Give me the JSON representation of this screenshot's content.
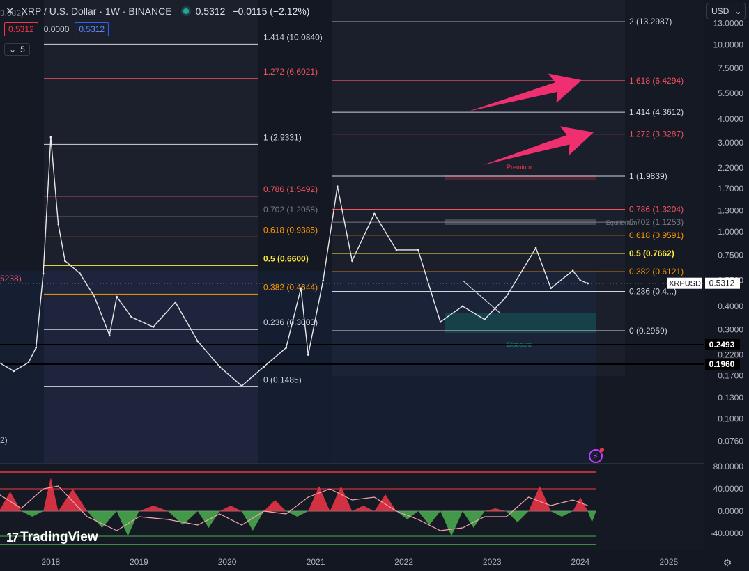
{
  "header": {
    "close_icon": "close-icon",
    "title": "XRP / U.S. Dollar · 1W · BINANCE",
    "status_color": "#26a69a",
    "price": "0.5312",
    "change": "−0.0115 (−2.12%)"
  },
  "ohlc": {
    "bid": "0.5312",
    "spread": "0.0000",
    "ask": "0.5312"
  },
  "indicators_toggle": {
    "icon": "chevron-down-icon",
    "count": "5"
  },
  "currency_button": {
    "label": "USD",
    "icon": "chevron-down-icon"
  },
  "logo": {
    "mark": "17",
    "text": "TradingView"
  },
  "partial_labels": {
    "top": "3.582)",
    "left_mid": "5238)",
    "left_low": "2)"
  },
  "chart_data": [
    {
      "type": "line",
      "series": [
        {
          "name": "XRPUSD",
          "x": [
            "2017-06",
            "2017-08",
            "2017-10",
            "2017-11",
            "2017-12",
            "2018-01",
            "2018-02",
            "2018-03",
            "2018-05",
            "2018-07",
            "2018-09",
            "2018-10",
            "2018-12",
            "2019-03",
            "2019-06",
            "2019-09",
            "2019-12",
            "2020-03",
            "2020-06",
            "2020-09",
            "2020-11",
            "2020-12",
            "2021-02",
            "2021-04",
            "2021-06",
            "2021-09",
            "2021-12",
            "2022-03",
            "2022-06",
            "2022-09",
            "2022-12",
            "2023-03",
            "2023-07",
            "2023-09",
            "2023-12",
            "2024-01",
            "2024-02"
          ],
          "values": [
            0.2,
            0.18,
            0.2,
            0.24,
            0.6,
            3.2,
            1.1,
            0.7,
            0.6,
            0.45,
            0.28,
            0.45,
            0.35,
            0.31,
            0.42,
            0.26,
            0.19,
            0.15,
            0.19,
            0.24,
            0.5,
            0.22,
            0.55,
            1.75,
            0.7,
            1.25,
            0.8,
            0.8,
            0.33,
            0.4,
            0.34,
            0.45,
            0.82,
            0.5,
            0.62,
            0.55,
            0.53
          ]
        }
      ],
      "xlabel": "",
      "ylabel": "",
      "x_ticks": [
        "2018",
        "2019",
        "2020",
        "2021",
        "2022",
        "2023",
        "2024",
        "2025"
      ],
      "y_ticks": [
        "13.0000",
        "10.0000",
        "7.5000",
        "5.5000",
        "4.0000",
        "3.0000",
        "2.2000",
        "1.7000",
        "1.3000",
        "1.0000",
        "0.7500",
        "0.5500",
        "0.4000",
        "0.3000",
        "0.2200",
        "0.1700",
        "0.1300",
        "0.1000",
        "0.0760"
      ],
      "y_scale": "log",
      "ylim": [
        0.06,
        15
      ],
      "grid": false,
      "fib_left": [
        {
          "label": "1.414 (10.0840)",
          "value": 10.084,
          "color": "#d1d4dc"
        },
        {
          "label": "1.272 (6.6021)",
          "value": 6.6021,
          "color": "#f7525f"
        },
        {
          "label": "1 (2.9331)",
          "value": 2.9331,
          "color": "#d1d4dc"
        },
        {
          "label": "0.786 (1.5492)",
          "value": 1.5492,
          "color": "#f7525f"
        },
        {
          "label": "0.702 (1.2058)",
          "value": 1.2058,
          "color": "#787b86"
        },
        {
          "label": "0.618 (0.9385)",
          "value": 0.9385,
          "color": "#ff9800"
        },
        {
          "label": "0.5 (0.6600)",
          "value": 0.66,
          "color": "#ffeb3b"
        },
        {
          "label": "0.382 (0.4644)",
          "value": 0.4644,
          "color": "#ff9800"
        },
        {
          "label": "0.236 (0.3003)",
          "value": 0.3003,
          "color": "#d1d4dc"
        },
        {
          "label": "0 (0.1485)",
          "value": 0.1485,
          "color": "#d1d4dc"
        }
      ],
      "fib_right": [
        {
          "label": "2 (13.2987)",
          "value": 13.2987,
          "color": "#d1d4dc"
        },
        {
          "label": "1.618 (6.4294)",
          "value": 6.4294,
          "color": "#f7525f"
        },
        {
          "label": "1.414 (4.3612)",
          "value": 4.3612,
          "color": "#d1d4dc"
        },
        {
          "label": "1.272 (3.3287)",
          "value": 3.3287,
          "color": "#f7525f"
        },
        {
          "label": "1 (1.9839)",
          "value": 1.9839,
          "color": "#d1d4dc"
        },
        {
          "label": "0.786 (1.3204)",
          "value": 1.3204,
          "color": "#f7525f"
        },
        {
          "label": "0.702 (1.1253)",
          "value": 1.1253,
          "color": "#787b86"
        },
        {
          "label": "0.618 (0.9591)",
          "value": 0.9591,
          "color": "#ff9800"
        },
        {
          "label": "0.5 (0.7662)",
          "value": 0.7662,
          "color": "#ffeb3b"
        },
        {
          "label": "0.382 (0.6121)",
          "value": 0.6121,
          "color": "#ff9800"
        },
        {
          "label": "0.236 (0.4...)",
          "value": 0.48,
          "color": "#d1d4dc"
        },
        {
          "label": "0 (0.2959)",
          "value": 0.2959,
          "color": "#d1d4dc"
        }
      ],
      "horizontal_levels": [
        {
          "label": "0.2493",
          "value": 0.2493
        },
        {
          "label": "0.1960",
          "value": 0.196
        }
      ],
      "zones": [
        {
          "label": "Premium",
          "color": "#f23645"
        },
        {
          "label": "Equilibrium",
          "color": "#787b86"
        },
        {
          "label": "Discount",
          "color": "#089981"
        }
      ],
      "last_price": {
        "label": "XRPUSD",
        "value": "0.5312"
      },
      "annotations": [
        "arrow-upper",
        "arrow-lower"
      ],
      "accent_color": "#ef2f6f"
    },
    {
      "type": "bar",
      "y_ticks": [
        "80.0000",
        "40.0000",
        "0.0000",
        "-40.0000"
      ],
      "ylim": [
        -60,
        80
      ],
      "overbought": 70,
      "oversold": -60,
      "colors": {
        "positive": "#4caf50",
        "negative": "#f23645",
        "signal": "#f7a6b0"
      },
      "x": [
        "2017-06",
        "2017-09",
        "2017-12",
        "2018-02",
        "2018-06",
        "2018-10",
        "2019-01",
        "2019-05",
        "2019-09",
        "2019-12",
        "2020-03",
        "2020-06",
        "2020-09",
        "2020-12",
        "2021-03",
        "2021-06",
        "2021-09",
        "2021-12",
        "2022-03",
        "2022-06",
        "2022-09",
        "2022-12",
        "2023-03",
        "2023-06",
        "2023-09",
        "2023-12",
        "2024-02"
      ],
      "values": [
        35,
        -10,
        60,
        40,
        -30,
        -45,
        10,
        -25,
        -30,
        10,
        -35,
        20,
        -10,
        45,
        45,
        10,
        30,
        -15,
        -25,
        -45,
        -30,
        5,
        -20,
        45,
        -10,
        25,
        -20
      ],
      "signal": [
        30,
        5,
        40,
        45,
        -10,
        -35,
        -10,
        -15,
        -25,
        -5,
        -25,
        0,
        -5,
        25,
        40,
        20,
        25,
        0,
        -15,
        -35,
        -30,
        -10,
        -10,
        25,
        10,
        20,
        10
      ]
    }
  ]
}
